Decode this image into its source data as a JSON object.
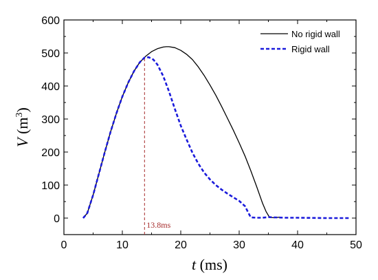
{
  "chart_data": {
    "type": "line",
    "xlabel": {
      "var": "t",
      "unit": " (ms)"
    },
    "ylabel": {
      "var": "V",
      "unit_pre": " (m",
      "unit_sup": "3",
      "unit_post": ")"
    },
    "xlim": [
      0,
      50
    ],
    "ylim": [
      -50,
      600
    ],
    "xticks": [
      0,
      10,
      20,
      30,
      40,
      50
    ],
    "yticks": [
      0,
      100,
      200,
      300,
      400,
      500,
      600
    ],
    "grid": false,
    "legend_position": "top-right",
    "series": [
      {
        "name": "No rigid wall",
        "color": "#000000",
        "style": "solid",
        "points": [
          [
            3.3,
            0
          ],
          [
            4,
            15
          ],
          [
            5,
            70
          ],
          [
            6,
            135
          ],
          [
            7,
            200
          ],
          [
            8,
            262
          ],
          [
            9,
            318
          ],
          [
            10,
            368
          ],
          [
            11,
            410
          ],
          [
            12,
            445
          ],
          [
            13,
            472
          ],
          [
            14,
            490
          ],
          [
            15,
            504
          ],
          [
            16,
            513
          ],
          [
            17,
            518
          ],
          [
            17.5,
            519
          ],
          [
            18,
            519
          ],
          [
            19,
            516
          ],
          [
            20,
            508
          ],
          [
            21,
            496
          ],
          [
            22,
            480
          ],
          [
            23,
            458
          ],
          [
            24,
            432
          ],
          [
            25,
            403
          ],
          [
            26,
            372
          ],
          [
            27,
            338
          ],
          [
            28,
            302
          ],
          [
            29,
            266
          ],
          [
            30,
            228
          ],
          [
            31,
            188
          ],
          [
            32,
            143
          ],
          [
            33,
            95
          ],
          [
            34,
            45
          ],
          [
            34.6,
            20
          ],
          [
            35.2,
            2
          ],
          [
            36,
            1
          ],
          [
            37,
            3
          ]
        ]
      },
      {
        "name": "Rigid wall",
        "color": "#1a1adb",
        "style": "dashed",
        "points": [
          [
            3.3,
            0
          ],
          [
            4,
            15
          ],
          [
            5,
            70
          ],
          [
            6,
            135
          ],
          [
            7,
            200
          ],
          [
            8,
            262
          ],
          [
            9,
            318
          ],
          [
            10,
            368
          ],
          [
            11,
            410
          ],
          [
            12,
            445
          ],
          [
            13,
            472
          ],
          [
            13.8,
            486
          ],
          [
            14.5,
            487
          ],
          [
            15.3,
            480
          ],
          [
            16,
            465
          ],
          [
            17,
            430
          ],
          [
            18,
            383
          ],
          [
            19,
            330
          ],
          [
            20,
            280
          ],
          [
            21,
            238
          ],
          [
            22,
            198
          ],
          [
            23,
            165
          ],
          [
            24,
            138
          ],
          [
            25,
            117
          ],
          [
            26,
            100
          ],
          [
            27,
            86
          ],
          [
            28,
            74
          ],
          [
            29,
            63
          ],
          [
            30,
            52
          ],
          [
            31,
            36
          ],
          [
            31.6,
            15
          ],
          [
            32,
            2
          ],
          [
            33,
            1
          ],
          [
            34,
            1
          ],
          [
            35,
            3
          ],
          [
            36,
            2
          ],
          [
            38,
            1
          ],
          [
            40,
            1
          ],
          [
            45,
            0
          ],
          [
            48.8,
            0
          ]
        ]
      }
    ],
    "annotations": [
      {
        "type": "vline",
        "x": 13.8,
        "y_from": -50,
        "y_to": 486,
        "color": "#a52a2a",
        "label": "13.8ms"
      }
    ]
  }
}
